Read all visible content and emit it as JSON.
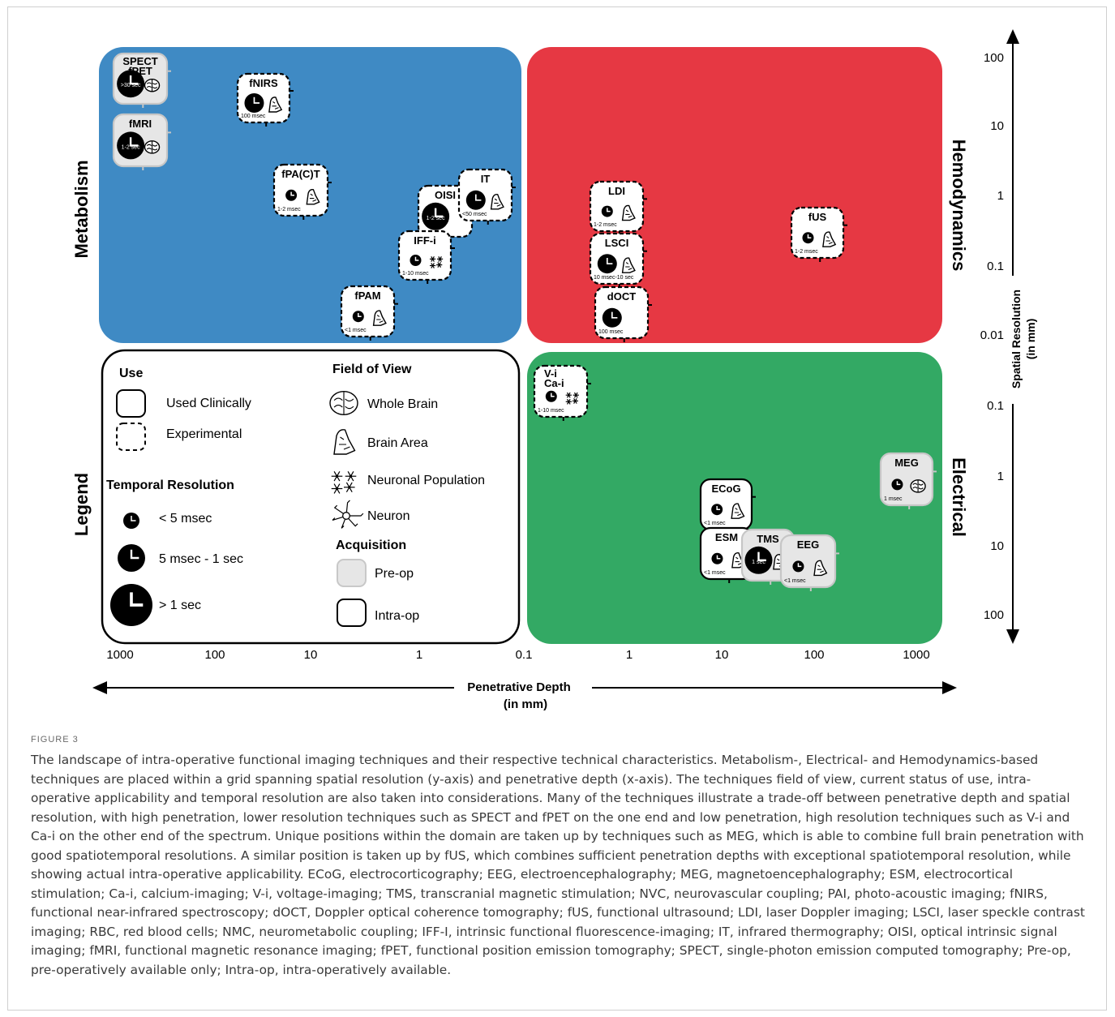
{
  "quadrants": [
    {
      "key": "metabolism",
      "label": "Metabolism",
      "color": "#3f8ac4"
    },
    {
      "key": "hemodynamics",
      "label": "Hemodynamics",
      "color": "#e63843"
    },
    {
      "key": "legend",
      "label": "Legend",
      "color": "#ffffff"
    },
    {
      "key": "electrical",
      "label": "Electrical",
      "color": "#33a964"
    }
  ],
  "x_axis": {
    "title_line1": "Penetrative Depth",
    "title_line2": "(in mm)",
    "ticks_left": [
      "1000",
      "100",
      "10",
      "1",
      "0.1"
    ],
    "ticks_right": [
      "0.1",
      "1",
      "10",
      "100",
      "1000"
    ]
  },
  "y_axis": {
    "title_line1": "Spatial Resolution",
    "title_line2": "(in mm)",
    "ticks_top": [
      "100",
      "10",
      "1",
      "0.1",
      "0.01"
    ],
    "ticks_bottom": [
      "0.1",
      "1",
      "10",
      "100"
    ]
  },
  "legend": {
    "use_title": "Use",
    "use_items": [
      {
        "label": "Used Clinically",
        "style": "solid"
      },
      {
        "label": "Experimental",
        "style": "dashed"
      }
    ],
    "temporal_title": "Temporal Resolution",
    "temporal_items": [
      {
        "label": "< 5 msec",
        "size": "small"
      },
      {
        "label": "5 msec - 1 sec",
        "size": "medium"
      },
      {
        "label": "> 1 sec",
        "size": "large"
      }
    ],
    "fov_title": "Field of View",
    "fov_items": [
      {
        "label": "Whole Brain",
        "icon": "brain-icon"
      },
      {
        "label": "Brain Area",
        "icon": "brain-area-icon"
      },
      {
        "label": "Neuronal Population",
        "icon": "neuronal-population-icon"
      },
      {
        "label": "Neuron",
        "icon": "neuron-icon"
      }
    ],
    "acq_title": "Acquisition",
    "acq_items": [
      {
        "label": "Pre-op",
        "style": "pre-op"
      },
      {
        "label": "Intra-op",
        "style": "intra-op"
      }
    ]
  },
  "techniques": [
    {
      "name": "SPECT fPET",
      "lines": [
        "SPECT",
        "fPET"
      ],
      "time": ">30 sec",
      "clock": "large",
      "fov": "brain-icon",
      "use": "solid",
      "acq": "pre-op"
    },
    {
      "name": "fMRI",
      "lines": [
        "fMRI"
      ],
      "time": "1-2 sec",
      "clock": "large",
      "fov": "brain-icon",
      "use": "solid",
      "acq": "pre-op"
    },
    {
      "name": "fNIRS",
      "lines": [
        "fNIRS"
      ],
      "time": "100 msec",
      "clock": "medium",
      "fov": "brain-area-icon",
      "use": "dashed",
      "acq": "intra-op"
    },
    {
      "name": "fPA(C)T",
      "lines": [
        "fPA(C)T"
      ],
      "time": "1-2 msec",
      "clock": "small",
      "fov": "brain-area-icon",
      "use": "dashed",
      "acq": "intra-op"
    },
    {
      "name": "OISI",
      "lines": [
        "OISI"
      ],
      "time": "1-2 sec",
      "clock": "large",
      "fov": "",
      "use": "dashed",
      "acq": "intra-op"
    },
    {
      "name": "IT",
      "lines": [
        "IT"
      ],
      "time": "<50 msec",
      "clock": "medium",
      "fov": "brain-area-icon",
      "use": "dashed",
      "acq": "intra-op"
    },
    {
      "name": "IFF-i",
      "lines": [
        "IFF-i"
      ],
      "time": "1-10 msec",
      "clock": "small",
      "fov": "neuronal-population-icon",
      "use": "dashed",
      "acq": "intra-op"
    },
    {
      "name": "fPAM",
      "lines": [
        "fPAM"
      ],
      "time": "<1 msec",
      "clock": "small",
      "fov": "brain-area-icon",
      "use": "dashed",
      "acq": "intra-op"
    },
    {
      "name": "LDI",
      "lines": [
        "LDI"
      ],
      "time": "1-2 msec",
      "clock": "small",
      "fov": "brain-area-icon",
      "use": "dashed",
      "acq": "intra-op"
    },
    {
      "name": "LSCI",
      "lines": [
        "LSCI"
      ],
      "time": "10 msec-10 sec",
      "clock": "medium",
      "fov": "brain-area-icon",
      "use": "dashed",
      "acq": "intra-op"
    },
    {
      "name": "dOCT",
      "lines": [
        "dOCT"
      ],
      "time": "100 msec",
      "clock": "medium",
      "fov": "",
      "use": "dashed",
      "acq": "intra-op"
    },
    {
      "name": "fUS",
      "lines": [
        "fUS"
      ],
      "time": "1-2 msec",
      "clock": "small",
      "fov": "brain-area-icon",
      "use": "dashed",
      "acq": "intra-op"
    },
    {
      "name": "V-i Ca-i",
      "lines": [
        "V-i",
        "Ca-i"
      ],
      "time": "1-10 msec",
      "clock": "small",
      "fov": "neuronal-population-icon",
      "use": "dashed",
      "acq": "intra-op"
    },
    {
      "name": "MEG",
      "lines": [
        "MEG"
      ],
      "time": "1 msec",
      "clock": "small",
      "fov": "brain-icon",
      "use": "solid",
      "acq": "pre-op"
    },
    {
      "name": "ECoG",
      "lines": [
        "ECoG"
      ],
      "time": "<1 msec",
      "clock": "small",
      "fov": "brain-area-icon",
      "use": "solid",
      "acq": "intra-op"
    },
    {
      "name": "ESM",
      "lines": [
        "ESM"
      ],
      "time": "<1 msec",
      "clock": "small",
      "fov": "brain-area-icon",
      "use": "solid",
      "acq": "intra-op"
    },
    {
      "name": "TMS",
      "lines": [
        "TMS"
      ],
      "time": "1 sec",
      "clock": "large",
      "fov": "brain-area-icon",
      "use": "solid",
      "acq": "pre-op"
    },
    {
      "name": "EEG",
      "lines": [
        "EEG"
      ],
      "time": "<1 msec",
      "clock": "small",
      "fov": "brain-area-icon",
      "use": "solid",
      "acq": "pre-op"
    }
  ],
  "caption": {
    "label": "FIGURE 3",
    "text": "The landscape of intra-operative functional imaging techniques and their respective technical characteristics. Metabolism-, Electrical- and Hemodynamics-based techniques are placed within a grid spanning spatial resolution (y-axis) and penetrative depth (x-axis). The techniques field of view, current status of use, intra-operative applicability and temporal resolution are also taken into considerations. Many of the techniques illustrate a trade-off between penetrative depth and spatial resolution, with high penetration, lower resolution techniques such as SPECT and fPET on the one end and low penetration, high resolution techniques such as V-i and Ca-i on the other end of the spectrum. Unique positions within the domain are taken up by techniques such as MEG, which is able to combine full brain penetration with good spatiotemporal resolutions. A similar position is taken up by fUS, which combines sufficient penetration depths with exceptional spatiotemporal resolution, while showing actual intra-operative applicability. ECoG, electrocorticography; EEG, electroencephalography; MEG, magnetoencephalography; ESM, electrocortical stimulation; Ca-i, calcium-imaging; V-i, voltage-imaging; TMS, transcranial magnetic stimulation; NVC, neurovascular coupling; PAI, photo-acoustic imaging; fNIRS, functional near-infrared spectroscopy; dOCT, Doppler optical coherence tomography; fUS, functional ultrasound; LDI, laser Doppler imaging; LSCI, laser speckle contrast imaging; RBC, red blood cells; NMC, neurometabolic coupling; IFF-I, intrinsic functional fluorescence-imaging; IT, infrared thermography; OISI, optical intrinsic signal imaging; fMRI, functional magnetic resonance imaging; fPET, functional position emission tomography; SPECT, single-photon emission computed tomography; Pre-op, pre-operatively available only; Intra-op, intra-operatively available."
  }
}
